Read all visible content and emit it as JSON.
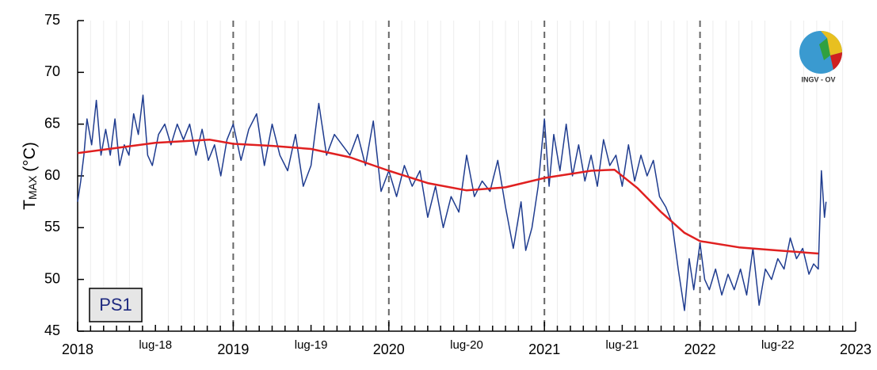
{
  "chart_data": {
    "type": "line",
    "ylabel": {
      "main": "T",
      "sub": "MAX",
      "unit": "(°C)"
    },
    "panel_label": "PS1",
    "logo_text": "INGV - OV",
    "xlim": [
      2018,
      2023
    ],
    "ylim": [
      45,
      75
    ],
    "yticks": [
      45,
      50,
      55,
      60,
      65,
      70,
      75
    ],
    "xticks": [
      2018,
      {
        "value": 2018.5,
        "label": "lug-18"
      },
      2019,
      {
        "value": 2019.5,
        "label": "lug-19"
      },
      2020,
      {
        "value": 2020.5,
        "label": "lug-20"
      },
      2021,
      {
        "value": 2021.5,
        "label": "lug-21"
      },
      2022,
      {
        "value": 2022.5,
        "label": "lug-22"
      },
      2023
    ],
    "xminorticks": [
      2018.083,
      2018.167,
      2018.25,
      2018.333,
      2018.417,
      2018.583,
      2018.667,
      2018.75,
      2018.833,
      2018.917,
      2019.083,
      2019.167,
      2019.25,
      2019.333,
      2019.417,
      2019.583,
      2019.667,
      2019.75,
      2019.833,
      2019.917,
      2020.083,
      2020.167,
      2020.25,
      2020.333,
      2020.417,
      2020.583,
      2020.667,
      2020.75,
      2020.833,
      2020.917,
      2021.083,
      2021.167,
      2021.25,
      2021.333,
      2021.417,
      2021.583,
      2021.667,
      2021.75,
      2021.833,
      2021.917,
      2022.083,
      2022.167,
      2022.25,
      2022.333,
      2022.417,
      2022.583,
      2022.667,
      2022.75,
      2022.833,
      2022.917
    ],
    "dashed_lines": [
      2019,
      2020,
      2021,
      2022
    ],
    "grid": true,
    "series": [
      {
        "color": "#1f3c8f",
        "x": [
          2018.0,
          2018.02,
          2018.04,
          2018.06,
          2018.09,
          2018.12,
          2018.15,
          2018.18,
          2018.21,
          2018.24,
          2018.27,
          2018.3,
          2018.33,
          2018.36,
          2018.39,
          2018.42,
          2018.45,
          2018.48,
          2018.52,
          2018.56,
          2018.6,
          2018.64,
          2018.68,
          2018.72,
          2018.76,
          2018.8,
          2018.84,
          2018.88,
          2018.92,
          2018.96,
          2019.0,
          2019.05,
          2019.1,
          2019.15,
          2019.2,
          2019.25,
          2019.3,
          2019.35,
          2019.4,
          2019.45,
          2019.5,
          2019.55,
          2019.6,
          2019.65,
          2019.7,
          2019.75,
          2019.8,
          2019.85,
          2019.9,
          2019.95,
          2020.0,
          2020.05,
          2020.1,
          2020.15,
          2020.2,
          2020.25,
          2020.3,
          2020.35,
          2020.4,
          2020.45,
          2020.5,
          2020.55,
          2020.6,
          2020.65,
          2020.7,
          2020.75,
          2020.8,
          2020.85,
          2020.88,
          2020.92,
          2020.96,
          2021.0,
          2021.03,
          2021.06,
          2021.1,
          2021.14,
          2021.18,
          2021.22,
          2021.26,
          2021.3,
          2021.34,
          2021.38,
          2021.42,
          2021.46,
          2021.5,
          2021.54,
          2021.58,
          2021.62,
          2021.66,
          2021.7,
          2021.74,
          2021.78,
          2021.82,
          2021.86,
          2021.9,
          2021.93,
          2021.96,
          2022.0,
          2022.03,
          2022.06,
          2022.1,
          2022.14,
          2022.18,
          2022.22,
          2022.26,
          2022.3,
          2022.34,
          2022.38,
          2022.42,
          2022.46,
          2022.5,
          2022.54,
          2022.58,
          2022.62,
          2022.66,
          2022.7,
          2022.73,
          2022.76,
          2022.78,
          2022.8,
          2022.81
        ],
        "values": [
          57.5,
          59.5,
          62,
          65.5,
          63,
          67.3,
          62,
          64.5,
          62,
          65.5,
          61,
          63,
          62,
          66,
          64,
          67.8,
          62,
          61,
          64,
          65,
          63,
          65,
          63.5,
          65,
          62,
          64.5,
          61.5,
          63,
          60,
          63.5,
          65,
          61.5,
          64.5,
          66,
          61,
          65,
          62,
          60.5,
          64,
          59,
          61,
          67,
          62,
          64,
          63,
          62,
          64,
          61,
          65.3,
          58.5,
          60.5,
          58,
          61,
          59,
          60.5,
          56,
          59,
          55,
          58,
          56.5,
          62,
          58,
          59.5,
          58.5,
          61.5,
          57,
          53,
          57.5,
          52.8,
          55,
          59,
          65.5,
          59,
          64,
          60.5,
          65,
          60,
          63,
          59.5,
          62,
          59,
          63.5,
          61,
          62,
          59,
          63,
          59.5,
          62,
          60,
          61.5,
          58,
          57,
          55.5,
          51,
          47,
          52,
          49,
          53.5,
          50,
          49,
          51,
          48.5,
          50.5,
          49,
          51,
          48.5,
          53,
          47.5,
          51,
          50,
          52,
          51,
          54,
          52,
          53,
          50.5,
          51.5,
          51,
          60.5,
          56,
          57.5
        ]
      },
      {
        "color": "#e02020",
        "x": [
          2018.0,
          2018.25,
          2018.5,
          2018.85,
          2019.0,
          2019.25,
          2019.5,
          2019.75,
          2020.0,
          2020.25,
          2020.5,
          2020.75,
          2021.0,
          2021.3,
          2021.45,
          2021.6,
          2021.75,
          2021.9,
          2022.0,
          2022.25,
          2022.5,
          2022.76
        ],
        "values": [
          62.2,
          62.7,
          63.2,
          63.5,
          63.1,
          62.9,
          62.6,
          61.8,
          60.5,
          59.3,
          58.6,
          58.9,
          59.8,
          60.5,
          60.6,
          58.8,
          56.5,
          54.5,
          53.7,
          53.1,
          52.8,
          52.5
        ]
      }
    ]
  }
}
